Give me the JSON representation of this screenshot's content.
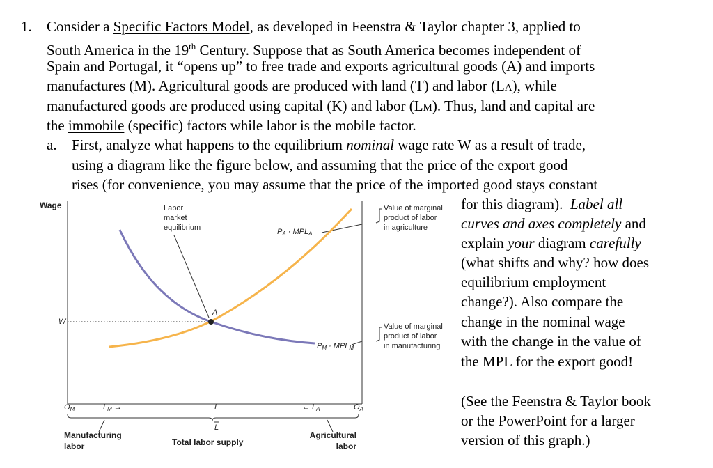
{
  "question": {
    "number": "1.",
    "lines": [
      [
        "Consider a ",
        "Specific Factors Model",
        ", as developed in Feenstra & Taylor chapter 3, applied to"
      ],
      [
        "South America in the 19",
        "th",
        " Century. Suppose that as South America becomes independent of"
      ],
      [
        "Spain and Portugal, it “opens up” to free trade and exports agricultural goods (A) and imports"
      ],
      [
        "manufactures (M). Agricultural goods are produced with land (T) and labor (L",
        "A",
        "), while"
      ],
      [
        "manufactured goods are produced using capital (K) and labor (L",
        "M",
        "). Thus, land and capital are"
      ],
      [
        "the ",
        "immobile",
        " (specific) factors while labor is the mobile factor."
      ]
    ],
    "part_a": {
      "label": "a.",
      "lines": [
        [
          "First, analyze what happens to the equilibrium ",
          "nominal",
          " wage rate W as a result of trade,"
        ],
        [
          "using a diagram like the figure below, and assuming that the price of the export good"
        ],
        [
          "rises (for convenience, you may assume that the price of the imported good stays constant"
        ],
        [
          "for this diagram).  ",
          "Label all"
        ],
        [
          "curves and axes completely",
          " and"
        ],
        [
          "explain ",
          "your",
          " diagram ",
          "carefully"
        ],
        [
          "(what shifts and why? how does"
        ],
        [
          "equilibrium employment"
        ],
        [
          "change?). Also compare the"
        ],
        [
          "change in the nominal wage"
        ],
        [
          "with the change in the value of"
        ],
        [
          "the MPL for the export good!"
        ]
      ],
      "note": [
        "(See the Feenstra & Taylor book",
        "or the PowerPoint for a larger",
        "version of this graph.)"
      ]
    }
  },
  "figure": {
    "y_axis_label": "Wage",
    "equilibrium_label": [
      "Labor",
      "market",
      "equilibrium"
    ],
    "agri_curve_label": [
      "P",
      "A",
      " · MPL",
      "A"
    ],
    "manu_curve_label": [
      "P",
      "M",
      " · MPL",
      "M"
    ],
    "agri_value_label": [
      "Value of marginal",
      "product of labor",
      "in agriculture"
    ],
    "manu_value_label": [
      "Value of marginal",
      "product of labor",
      "in manufacturing"
    ],
    "wage_label": "W",
    "point_label": "A",
    "origin_m": [
      "O",
      "M"
    ],
    "labor_m": [
      "L",
      "M",
      "→"
    ],
    "labor_eq": "L",
    "labor_a": [
      "←",
      "L",
      "A"
    ],
    "origin_a": [
      "O",
      "A"
    ],
    "total_labor_symbol": "L",
    "manufacturing_labor": [
      "Manufacturing",
      "labor"
    ],
    "total_labor_supply": "Total labor supply",
    "agricultural_labor": [
      "Agricultural",
      "labor"
    ]
  }
}
